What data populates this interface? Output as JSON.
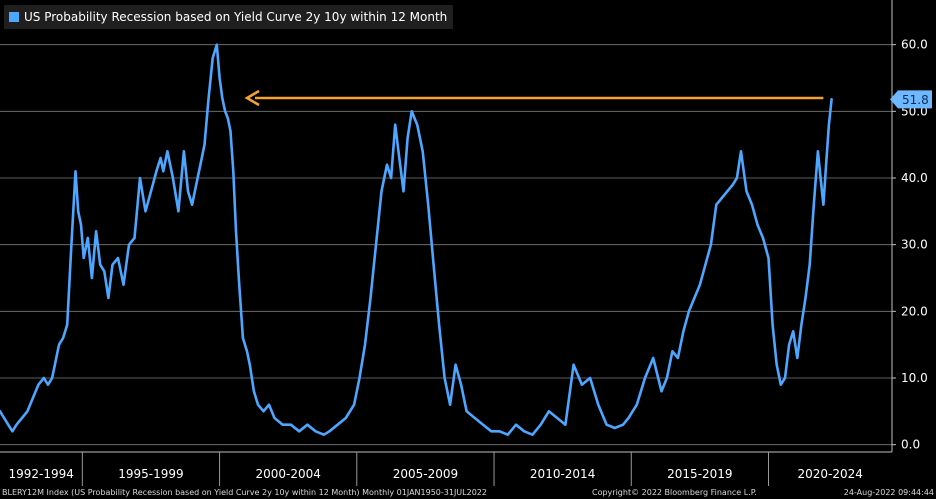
{
  "colors": {
    "background": "#000000",
    "series": "#4da6ff",
    "grid": "#7a7a7a",
    "arrow": "#f5a233",
    "axis_text": "#ffffff",
    "last_value_bg": "#6fb8ff",
    "last_value_text": "#0b2d52"
  },
  "chart_data": {
    "type": "line",
    "title": "US Probability Recession based on Yield Curve 2y 10y within 12 Month",
    "ylim": [
      -0.5,
      65.5
    ],
    "yticks": [
      0,
      10,
      20,
      30,
      40,
      50,
      60
    ],
    "ytick_labels": [
      "0.0",
      "10.0",
      "20.0",
      "30.0",
      "40.0",
      "50.0",
      "60.0"
    ],
    "xlim": [
      1992.0,
      2024.5
    ],
    "x_period_labels": [
      {
        "label": "1992-1994",
        "start": 1992.0,
        "end": 1995.0
      },
      {
        "label": "1995-1999",
        "start": 1995.0,
        "end": 2000.0
      },
      {
        "label": "2000-2004",
        "start": 2000.0,
        "end": 2005.0
      },
      {
        "label": "2005-2009",
        "start": 2005.0,
        "end": 2010.0
      },
      {
        "label": "2010-2014",
        "start": 2010.0,
        "end": 2015.0
      },
      {
        "label": "2015-2019",
        "start": 2015.0,
        "end": 2020.0
      },
      {
        "label": "2020-2024",
        "start": 2020.0,
        "end": 2024.5
      }
    ],
    "last_value": 51.8,
    "last_value_label": "51.8",
    "annotation": {
      "type": "arrow",
      "from_x": 2022.0,
      "to_x": 2001.0,
      "y": 52
    },
    "series": [
      {
        "name": "US Probability Recession based on Yield Curve 2y 10y within 12 Month",
        "x": [
          1992.0,
          1992.15,
          1992.3,
          1992.45,
          1992.6,
          1992.8,
          1993.0,
          1993.2,
          1993.4,
          1993.6,
          1993.75,
          1993.9,
          1994.0,
          1994.15,
          1994.3,
          1994.45,
          1994.6,
          1994.75,
          1994.85,
          1994.95,
          1995.05,
          1995.2,
          1995.35,
          1995.5,
          1995.65,
          1995.8,
          1995.95,
          1996.1,
          1996.3,
          1996.5,
          1996.7,
          1996.9,
          1997.1,
          1997.3,
          1997.5,
          1997.7,
          1997.85,
          1997.95,
          1998.1,
          1998.3,
          1998.5,
          1998.7,
          1998.85,
          1999.0,
          1999.15,
          1999.3,
          1999.45,
          1999.6,
          1999.75,
          1999.9,
          2000.0,
          2000.1,
          2000.2,
          2000.3,
          2000.4,
          2000.5,
          2000.6,
          2000.7,
          2000.85,
          2001.0,
          2001.1,
          2001.25,
          2001.4,
          2001.6,
          2001.8,
          2002.0,
          2002.3,
          2002.6,
          2002.9,
          2003.2,
          2003.5,
          2003.8,
          2004.0,
          2004.3,
          2004.6,
          2004.9,
          2005.1,
          2005.3,
          2005.5,
          2005.7,
          2005.9,
          2006.1,
          2006.25,
          2006.4,
          2006.55,
          2006.7,
          2006.85,
          2007.0,
          2007.2,
          2007.4,
          2007.6,
          2007.8,
          2008.0,
          2008.2,
          2008.4,
          2008.6,
          2008.8,
          2009.0,
          2009.3,
          2009.6,
          2009.9,
          2010.2,
          2010.5,
          2010.8,
          2011.1,
          2011.4,
          2011.7,
          2012.0,
          2012.3,
          2012.6,
          2012.9,
          2013.2,
          2013.5,
          2013.8,
          2014.1,
          2014.4,
          2014.7,
          2014.9,
          2015.2,
          2015.5,
          2015.8,
          2016.1,
          2016.3,
          2016.5,
          2016.7,
          2016.9,
          2017.1,
          2017.3,
          2017.5,
          2017.7,
          2017.9,
          2018.1,
          2018.3,
          2018.5,
          2018.7,
          2018.85,
          2019.0,
          2019.2,
          2019.4,
          2019.6,
          2019.8,
          2020.0,
          2020.15,
          2020.3,
          2020.45,
          2020.6,
          2020.75,
          2020.9,
          2021.05,
          2021.2,
          2021.35,
          2021.5,
          2021.65,
          2021.8,
          2021.9,
          2022.0,
          2022.1,
          2022.2,
          2022.3
        ],
        "y": [
          5,
          4,
          3,
          2,
          3,
          4,
          5,
          7,
          9,
          10,
          9,
          10,
          12,
          15,
          16,
          18,
          30,
          41,
          35,
          33,
          28,
          31,
          25,
          32,
          27,
          26,
          22,
          27,
          28,
          24,
          30,
          31,
          40,
          35,
          38,
          41,
          43,
          41,
          44,
          40,
          35,
          44,
          38,
          36,
          39,
          42,
          45,
          52,
          58,
          60,
          55,
          52,
          50,
          49,
          47,
          41,
          32,
          25,
          16,
          14,
          12,
          8,
          6,
          5,
          6,
          4,
          3,
          3,
          2,
          3,
          2,
          1.5,
          2,
          3,
          4,
          6,
          10,
          15,
          22,
          30,
          38,
          42,
          40,
          48,
          43,
          38,
          46,
          50,
          48,
          44,
          36,
          27,
          18,
          10,
          6,
          12,
          9,
          5,
          4,
          3,
          2,
          2,
          1.5,
          3,
          2,
          1.5,
          3,
          5,
          4,
          3,
          12,
          9,
          10,
          6,
          3,
          2.5,
          3,
          4,
          6,
          10,
          13,
          8,
          10,
          14,
          13,
          17,
          20,
          22,
          24,
          27,
          30,
          36,
          37,
          38,
          39,
          40,
          44,
          38,
          36,
          33,
          31,
          28,
          18,
          12,
          9,
          10,
          15,
          17,
          13,
          18,
          22,
          27,
          36,
          44,
          40,
          36,
          42,
          48,
          51.8
        ]
      }
    ]
  },
  "footer": {
    "left": "BLERY12M Index (US Probability Recession based on Yield Curve 2y 10y within 12 Month)  Monthly 01JAN1950-31JUL2022",
    "center": "Copyright© 2022 Bloomberg Finance L.P.",
    "right": "24-Aug-2022 09:44:44"
  }
}
